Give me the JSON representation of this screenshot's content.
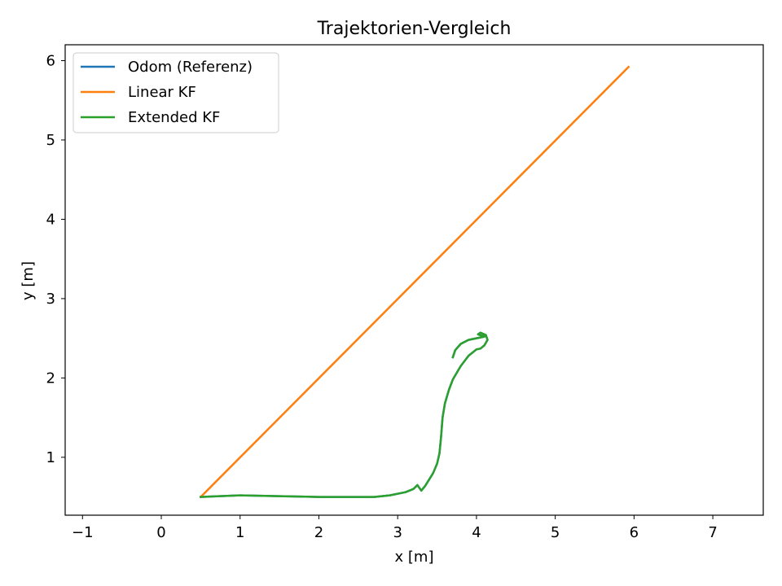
{
  "chart_data": {
    "type": "line",
    "title": "Trajektorien-Vergleich",
    "xlabel": "x [m]",
    "ylabel": "y [m]",
    "xlim": [
      -1.22,
      7.64
    ],
    "ylim": [
      0.27,
      6.2
    ],
    "xticks": [
      -1,
      0,
      1,
      2,
      3,
      4,
      5,
      6,
      7
    ],
    "yticks": [
      1,
      2,
      3,
      4,
      5,
      6
    ],
    "grid": false,
    "legend_position": "top-left",
    "series": [
      {
        "name": "Odom (Referenz)",
        "color": "#1f77b4",
        "x": [
          0.5,
          1.0,
          1.5,
          2.0,
          2.5,
          2.7,
          2.9,
          3.1,
          3.2,
          3.25,
          3.3,
          3.35,
          3.4,
          3.45,
          3.5,
          3.53,
          3.55,
          3.57,
          3.6,
          3.65,
          3.7,
          3.8,
          3.9,
          4.0,
          4.05,
          4.1,
          4.14,
          4.12,
          4.05,
          4.02,
          4.1,
          4.0,
          3.9,
          3.8,
          3.73,
          3.7
        ],
        "y": [
          0.5,
          0.52,
          0.51,
          0.5,
          0.5,
          0.5,
          0.52,
          0.56,
          0.6,
          0.65,
          0.58,
          0.64,
          0.72,
          0.8,
          0.92,
          1.05,
          1.25,
          1.5,
          1.68,
          1.85,
          1.98,
          2.15,
          2.28,
          2.36,
          2.37,
          2.41,
          2.48,
          2.54,
          2.57,
          2.55,
          2.52,
          2.5,
          2.48,
          2.43,
          2.35,
          2.26
        ]
      },
      {
        "name": "Linear KF",
        "color": "#ff7f0e",
        "x": [
          0.5,
          5.93
        ],
        "y": [
          0.5,
          5.92
        ]
      },
      {
        "name": "Extended KF",
        "color": "#2ca02c",
        "x": [
          0.5,
          1.0,
          1.5,
          2.0,
          2.5,
          2.7,
          2.9,
          3.1,
          3.2,
          3.25,
          3.3,
          3.35,
          3.4,
          3.45,
          3.5,
          3.53,
          3.55,
          3.57,
          3.6,
          3.65,
          3.7,
          3.8,
          3.9,
          4.0,
          4.05,
          4.1,
          4.14,
          4.12,
          4.05,
          4.02,
          4.1,
          4.0,
          3.9,
          3.8,
          3.73,
          3.7
        ],
        "y": [
          0.5,
          0.52,
          0.51,
          0.5,
          0.5,
          0.5,
          0.52,
          0.56,
          0.6,
          0.65,
          0.58,
          0.64,
          0.72,
          0.8,
          0.92,
          1.05,
          1.25,
          1.5,
          1.68,
          1.85,
          1.98,
          2.15,
          2.28,
          2.36,
          2.37,
          2.41,
          2.48,
          2.54,
          2.57,
          2.55,
          2.52,
          2.5,
          2.48,
          2.43,
          2.35,
          2.26
        ]
      }
    ]
  }
}
